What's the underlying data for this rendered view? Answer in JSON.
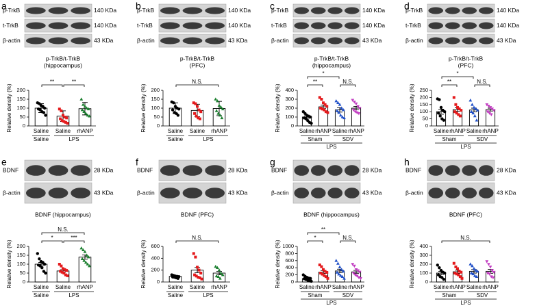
{
  "chart_data": [
    {
      "type": "scatter-bar",
      "panel": "a",
      "blot": [
        {
          "label": "p-TrkB",
          "size": "140 KDa"
        },
        {
          "label": "t-TrkB",
          "size": "140 KDa"
        },
        {
          "label": "β-actin",
          "size": "43 KDa"
        }
      ],
      "title": [
        "p-TrkB/t-TrkB",
        "(hippocampus)"
      ],
      "ylabel": "Relative density (%)",
      "ylim": [
        0,
        200
      ],
      "yticks": [
        0,
        50,
        100,
        150,
        200
      ],
      "categories": [
        "Saline",
        "Saline",
        "rhANP"
      ],
      "groups": [
        [
          {
            "label": "Saline",
            "span": [
              0,
              0
            ]
          },
          {
            "label": "LPS",
            "span": [
              1,
              2
            ]
          }
        ]
      ],
      "series": [
        {
          "color": "#000000",
          "marker": "circle",
          "mean": 100,
          "error": 25,
          "points": [
            130,
            125,
            115,
            110,
            100,
            95,
            90,
            80,
            75,
            60
          ]
        },
        {
          "color": "#e41a1c",
          "marker": "square",
          "mean": 55,
          "error": 30,
          "points": [
            95,
            85,
            60,
            50,
            45,
            40,
            30,
            25,
            20,
            15
          ]
        },
        {
          "color": "#1a7f2e",
          "marker": "triangle",
          "mean": 97,
          "error": 35,
          "points": [
            150,
            120,
            110,
            100,
            95,
            90,
            80,
            70,
            60,
            55
          ]
        }
      ],
      "significance": [
        {
          "label": "**",
          "span": [
            0,
            1
          ]
        },
        {
          "label": "**",
          "span": [
            1,
            2
          ]
        }
      ]
    },
    {
      "type": "scatter-bar",
      "panel": "b",
      "blot": [
        {
          "label": "p-TrkB",
          "size": "140 KDa"
        },
        {
          "label": "t-TrkB",
          "size": "140 KDa"
        },
        {
          "label": "β-actin",
          "size": "43 KDa"
        }
      ],
      "title": [
        "p-TrkB/t-TrkB",
        "(PFC)"
      ],
      "ylabel": "Relative density (%)",
      "ylim": [
        0,
        200
      ],
      "yticks": [
        0,
        50,
        100,
        150,
        200
      ],
      "categories": [
        "Saline",
        "Saline",
        "rhANP"
      ],
      "groups": [
        [
          {
            "label": "Saline",
            "span": [
              0,
              0
            ]
          },
          {
            "label": "LPS",
            "span": [
              1,
              2
            ]
          }
        ]
      ],
      "series": [
        {
          "color": "#000000",
          "marker": "circle",
          "mean": 100,
          "error": 30,
          "points": [
            135,
            130,
            110,
            100,
            95,
            90,
            75,
            70,
            60
          ]
        },
        {
          "color": "#e41a1c",
          "marker": "square",
          "mean": 87,
          "error": 35,
          "points": [
            130,
            125,
            110,
            90,
            80,
            70,
            55,
            45,
            40
          ]
        },
        {
          "color": "#1a7f2e",
          "marker": "triangle",
          "mean": 98,
          "error": 40,
          "points": [
            150,
            140,
            115,
            105,
            95,
            85,
            70,
            60,
            45
          ]
        }
      ],
      "significance": [
        {
          "label": "N.S.",
          "span": [
            0,
            2
          ]
        }
      ]
    },
    {
      "type": "scatter-bar",
      "panel": "c",
      "blot": [
        {
          "label": "p-TrkB",
          "size": "140 KDa"
        },
        {
          "label": "t-TrkB",
          "size": "140 KDa"
        },
        {
          "label": "β-actin",
          "size": "43 KDa"
        }
      ],
      "title": [
        "p-TrkB/t-TrkB",
        "(hippocampus)"
      ],
      "ylabel": "Relative density (%)",
      "ylim": [
        0,
        400
      ],
      "yticks": [
        0,
        100,
        200,
        300,
        400
      ],
      "categories": [
        "Saline",
        "rhANP",
        "Saline",
        "rhANP"
      ],
      "groups": [
        [
          {
            "label": "Sham",
            "span": [
              0,
              1
            ]
          },
          {
            "label": "SDV",
            "span": [
              2,
              3
            ]
          }
        ],
        [
          {
            "label": "LPS",
            "span": [
              0,
              3
            ]
          }
        ]
      ],
      "series": [
        {
          "color": "#000000",
          "marker": "circle",
          "mean": 100,
          "error": 15,
          "points": [
            160,
            140,
            120,
            110,
            100,
            90,
            80,
            60,
            40,
            30
          ]
        },
        {
          "color": "#e41a1c",
          "marker": "square",
          "mean": 215,
          "error": 20,
          "points": [
            320,
            300,
            260,
            240,
            220,
            200,
            190,
            180,
            160,
            150
          ]
        },
        {
          "color": "#1f4fc8",
          "marker": "triangle",
          "mean": 180,
          "error": 25,
          "points": [
            280,
            260,
            240,
            200,
            180,
            170,
            150,
            120,
            100,
            90
          ]
        },
        {
          "color": "#c13cc1",
          "marker": "triangle-down",
          "mean": 200,
          "error": 20,
          "points": [
            290,
            270,
            250,
            220,
            200,
            180,
            160,
            150,
            140
          ]
        }
      ],
      "significance": [
        {
          "label": "**",
          "span": [
            0,
            1
          ]
        },
        {
          "label": "*",
          "span": [
            0,
            2
          ]
        },
        {
          "label": "N.S.",
          "span": [
            2,
            3
          ]
        }
      ]
    },
    {
      "type": "scatter-bar",
      "panel": "d",
      "blot": [
        {
          "label": "p-TrkB",
          "size": "140 KDa"
        },
        {
          "label": "t-TrkB",
          "size": "140 KDa"
        },
        {
          "label": "β-actin",
          "size": "43 KDa"
        }
      ],
      "title": [
        "p-TrkB/t-TrkB",
        "(PFC)"
      ],
      "ylabel": "Relative density (%)",
      "ylim": [
        0,
        250
      ],
      "yticks": [
        0,
        50,
        100,
        150,
        200,
        250
      ],
      "categories": [
        "Saline",
        "rhANP",
        "Saline",
        "rhANP"
      ],
      "groups": [
        [
          {
            "label": "Sham",
            "span": [
              0,
              1
            ]
          },
          {
            "label": "SDV",
            "span": [
              2,
              3
            ]
          }
        ],
        [
          {
            "label": "LPS",
            "span": [
              0,
              3
            ]
          }
        ]
      ],
      "series": [
        {
          "color": "#000000",
          "marker": "circle",
          "mean": 100,
          "error": 18,
          "points": [
            190,
            185,
            130,
            110,
            100,
            90,
            70,
            50,
            40
          ]
        },
        {
          "color": "#e41a1c",
          "marker": "square",
          "mean": 115,
          "error": 12,
          "points": [
            200,
            150,
            130,
            120,
            110,
            100,
            90,
            80,
            70
          ]
        },
        {
          "color": "#1f4fc8",
          "marker": "triangle",
          "mean": 112,
          "error": 13,
          "points": [
            180,
            150,
            130,
            120,
            110,
            100,
            90,
            70,
            40
          ]
        },
        {
          "color": "#c13cc1",
          "marker": "triangle-down",
          "mean": 115,
          "error": 10,
          "points": [
            150,
            140,
            130,
            120,
            110,
            100,
            90,
            80
          ]
        }
      ],
      "significance": [
        {
          "label": "**",
          "span": [
            0,
            1
          ]
        },
        {
          "label": "*",
          "span": [
            0,
            2
          ]
        },
        {
          "label": "N.S.",
          "span": [
            2,
            3
          ]
        }
      ]
    },
    {
      "type": "scatter-bar",
      "panel": "e",
      "blot": [
        {
          "label": "BDNF",
          "size": "28 KDa"
        },
        {
          "label": "β-actin",
          "size": "43 KDa"
        }
      ],
      "title": [
        "BDNF (hippocampus)"
      ],
      "ylabel": "Relative density (%)",
      "ylim": [
        0,
        200
      ],
      "yticks": [
        0,
        50,
        100,
        150,
        200
      ],
      "categories": [
        "Saline",
        "Saline",
        "rhANP"
      ],
      "groups": [
        [
          {
            "label": "Saline",
            "span": [
              0,
              0
            ]
          },
          {
            "label": "LPS",
            "span": [
              1,
              2
            ]
          }
        ]
      ],
      "series": [
        {
          "color": "#000000",
          "marker": "circle",
          "mean": 100,
          "error": 10,
          "points": [
            160,
            130,
            115,
            110,
            100,
            95,
            90,
            80,
            60,
            50
          ]
        },
        {
          "color": "#e41a1c",
          "marker": "square",
          "mean": 62,
          "error": 7,
          "points": [
            100,
            90,
            75,
            70,
            65,
            60,
            55,
            50,
            40,
            35
          ]
        },
        {
          "color": "#1a7f2e",
          "marker": "triangle",
          "mean": 140,
          "error": 12,
          "points": [
            190,
            180,
            170,
            150,
            140,
            130,
            120,
            110,
            100,
            90
          ]
        }
      ],
      "significance": [
        {
          "label": "*",
          "span": [
            0,
            1
          ]
        },
        {
          "label": "***",
          "span": [
            1,
            2
          ]
        },
        {
          "label": "N.S.",
          "span": [
            0,
            2
          ]
        }
      ]
    },
    {
      "type": "scatter-bar",
      "panel": "f",
      "blot": [
        {
          "label": "BDNF",
          "size": "28 KDa"
        },
        {
          "label": "β-actin",
          "size": "43 KDa"
        }
      ],
      "title": [
        "BDNF (PFC)"
      ],
      "ylabel": "Relative density (%)",
      "ylim": [
        0,
        600
      ],
      "yticks": [
        0,
        200,
        400,
        600
      ],
      "categories": [
        "Saline",
        "Saline",
        "rhANP"
      ],
      "groups": [
        [
          {
            "label": "Saline",
            "span": [
              0,
              0
            ]
          },
          {
            "label": "LPS",
            "span": [
              1,
              2
            ]
          }
        ]
      ],
      "series": [
        {
          "color": "#000000",
          "marker": "circle",
          "mean": 95,
          "error": 10,
          "points": [
            120,
            110,
            100,
            95,
            90,
            85,
            80,
            70,
            60
          ]
        },
        {
          "color": "#e41a1c",
          "marker": "square",
          "mean": 200,
          "error": 45,
          "points": [
            480,
            420,
            250,
            200,
            150,
            120,
            100,
            80,
            70,
            50
          ]
        },
        {
          "color": "#1a7f2e",
          "marker": "triangle",
          "mean": 150,
          "error": 30,
          "points": [
            260,
            240,
            200,
            150,
            120,
            100,
            90,
            60
          ]
        }
      ],
      "significance": [
        {
          "label": "N.S.",
          "span": [
            0,
            2
          ]
        }
      ]
    },
    {
      "type": "scatter-bar",
      "panel": "g",
      "blot": [
        {
          "label": "BDNF",
          "size": "28 KDa"
        },
        {
          "label": "β-actin",
          "size": "43 KDa"
        }
      ],
      "title": [
        "BDNF (hippocampus)"
      ],
      "ylabel": "Relative density (%)",
      "ylim": [
        0,
        1000
      ],
      "yticks": [
        0,
        200,
        400,
        600,
        800,
        1000
      ],
      "categories": [
        "Saline",
        "rhANP",
        "Saline",
        "rhANP"
      ],
      "groups": [
        [
          {
            "label": "Sham",
            "span": [
              0,
              1
            ]
          },
          {
            "label": "SDV",
            "span": [
              2,
              3
            ]
          }
        ],
        [
          {
            "label": "LPS",
            "span": [
              0,
              3
            ]
          }
        ]
      ],
      "series": [
        {
          "color": "#000000",
          "marker": "circle",
          "mean": 95,
          "error": 20,
          "points": [
            200,
            160,
            130,
            110,
            100,
            90,
            70,
            50,
            30,
            20
          ]
        },
        {
          "color": "#e41a1c",
          "marker": "square",
          "mean": 280,
          "error": 40,
          "points": [
            480,
            430,
            350,
            300,
            270,
            250,
            220,
            180,
            150,
            100
          ]
        },
        {
          "color": "#1f4fc8",
          "marker": "triangle",
          "mean": 310,
          "error": 50,
          "points": [
            600,
            520,
            420,
            350,
            300,
            270,
            220,
            180,
            150,
            100
          ]
        },
        {
          "color": "#c13cc1",
          "marker": "triangle-down",
          "mean": 285,
          "error": 40,
          "points": [
            500,
            450,
            350,
            320,
            280,
            250,
            200,
            170,
            130,
            100
          ]
        }
      ],
      "significance": [
        {
          "label": "*",
          "span": [
            0,
            1
          ]
        },
        {
          "label": "**",
          "span": [
            0,
            2
          ]
        },
        {
          "label": "N.S.",
          "span": [
            2,
            3
          ]
        }
      ]
    },
    {
      "type": "scatter-bar",
      "panel": "h",
      "blot": [
        {
          "label": "BDNF",
          "size": "28 KDa"
        },
        {
          "label": "β-actin",
          "size": "43 KDa"
        }
      ],
      "title": [
        "BDNF (PFC)"
      ],
      "ylabel": "Relative density (%)",
      "ylim": [
        0,
        400
      ],
      "yticks": [
        0,
        100,
        200,
        300,
        400
      ],
      "categories": [
        "Saline",
        "rhANP",
        "Saline",
        "rhANP"
      ],
      "groups": [
        [
          {
            "label": "Sham",
            "span": [
              0,
              1
            ]
          },
          {
            "label": "SDV",
            "span": [
              2,
              3
            ]
          }
        ],
        [
          {
            "label": "LPS",
            "span": [
              0,
              3
            ]
          }
        ]
      ],
      "series": [
        {
          "color": "#000000",
          "marker": "circle",
          "mean": 100,
          "error": 20,
          "points": [
            190,
            160,
            130,
            110,
            100,
            80,
            60,
            50,
            30
          ]
        },
        {
          "color": "#e41a1c",
          "marker": "square",
          "mean": 115,
          "error": 18,
          "points": [
            210,
            170,
            150,
            120,
            110,
            100,
            90,
            80,
            60,
            40
          ]
        },
        {
          "color": "#1f4fc8",
          "marker": "triangle",
          "mean": 120,
          "error": 20,
          "points": [
            200,
            180,
            150,
            130,
            120,
            100,
            90,
            70,
            60
          ]
        },
        {
          "color": "#c13cc1",
          "marker": "triangle-down",
          "mean": 120,
          "error": 22,
          "points": [
            230,
            200,
            170,
            130,
            110,
            100,
            90,
            60,
            50
          ]
        }
      ],
      "significance": [
        {
          "label": "N.S.",
          "span": [
            0,
            3
          ]
        }
      ]
    }
  ]
}
